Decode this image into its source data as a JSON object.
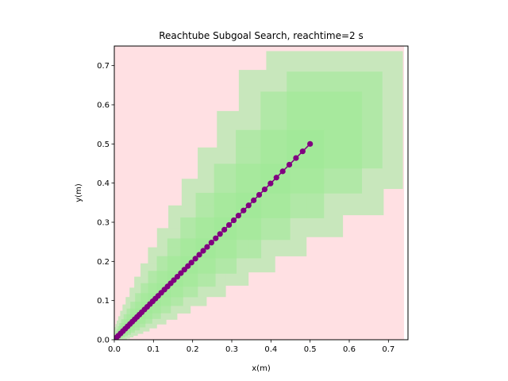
{
  "chart_data": {
    "type": "scatter",
    "title": "Reachtube Subgoal Search, reachtime=2 s",
    "xlabel": "x(m)",
    "ylabel": "y(m)",
    "xlim": [
      0,
      0.75
    ],
    "ylim": [
      0,
      0.75
    ],
    "x_ticks": [
      "0.0",
      "0.1",
      "0.2",
      "0.3",
      "0.4",
      "0.5",
      "0.6",
      "0.7"
    ],
    "y_ticks": [
      "0.0",
      "0.1",
      "0.2",
      "0.3",
      "0.4",
      "0.5",
      "0.6",
      "0.7"
    ],
    "grid": false,
    "legend": "none",
    "colors": {
      "background_region": "#ffe0e3",
      "reach_set": "#c8e7bc",
      "reach_set_core": "#9eea96",
      "trajectory": "#800080"
    },
    "background_region": {
      "x": [
        0,
        0.74
      ],
      "y": [
        0,
        0.75
      ]
    },
    "reach_boxes": [
      {
        "x0": 0.388,
        "x1": 0.737,
        "y0": 0.385,
        "y1": 0.737
      },
      {
        "x0": 0.318,
        "x1": 0.688,
        "y0": 0.318,
        "y1": 0.689
      },
      {
        "x0": 0.262,
        "x1": 0.584,
        "y0": 0.262,
        "y1": 0.584
      },
      {
        "x0": 0.213,
        "x1": 0.491,
        "y0": 0.213,
        "y1": 0.491
      },
      {
        "x0": 0.172,
        "x1": 0.411,
        "y0": 0.172,
        "y1": 0.411
      },
      {
        "x0": 0.138,
        "x1": 0.343,
        "y0": 0.138,
        "y1": 0.343
      },
      {
        "x0": 0.109,
        "x1": 0.285,
        "y0": 0.109,
        "y1": 0.285
      },
      {
        "x0": 0.086,
        "x1": 0.236,
        "y0": 0.086,
        "y1": 0.236
      },
      {
        "x0": 0.067,
        "x1": 0.195,
        "y0": 0.067,
        "y1": 0.195
      },
      {
        "x0": 0.051,
        "x1": 0.161,
        "y0": 0.051,
        "y1": 0.161
      },
      {
        "x0": 0.039,
        "x1": 0.133,
        "y0": 0.039,
        "y1": 0.133
      },
      {
        "x0": 0.029,
        "x1": 0.109,
        "y0": 0.029,
        "y1": 0.109
      },
      {
        "x0": 0.021,
        "x1": 0.09,
        "y0": 0.021,
        "y1": 0.09
      },
      {
        "x0": 0.015,
        "x1": 0.074,
        "y0": 0.015,
        "y1": 0.074
      },
      {
        "x0": 0.01,
        "x1": 0.06,
        "y0": 0.01,
        "y1": 0.06
      },
      {
        "x0": 0.006,
        "x1": 0.049,
        "y0": 0.006,
        "y1": 0.049
      },
      {
        "x0": 0.003,
        "x1": 0.04,
        "y0": 0.003,
        "y1": 0.04
      },
      {
        "x0": 0.001,
        "x1": 0.032,
        "y0": 0.001,
        "y1": 0.032
      },
      {
        "x0": 0.0,
        "x1": 0.025,
        "y0": 0.0,
        "y1": 0.025
      },
      {
        "x0": 0.0,
        "x1": 0.019,
        "y0": 0.0,
        "y1": 0.019
      },
      {
        "x0": 0.0,
        "x1": 0.014,
        "y0": 0.0,
        "y1": 0.014
      },
      {
        "x0": 0.0,
        "x1": 0.01,
        "y0": 0.0,
        "y1": 0.01
      }
    ],
    "series": [
      {
        "x": [
          0.0,
          0.005,
          0.01,
          0.016,
          0.022,
          0.028,
          0.034,
          0.04,
          0.046,
          0.052,
          0.058,
          0.064,
          0.07,
          0.077,
          0.084,
          0.091,
          0.098,
          0.105,
          0.112,
          0.12,
          0.128,
          0.136,
          0.144,
          0.152,
          0.161,
          0.17,
          0.179,
          0.188,
          0.197,
          0.207,
          0.217,
          0.227,
          0.237,
          0.248,
          0.259,
          0.27,
          0.281,
          0.293,
          0.305,
          0.317,
          0.33,
          0.343,
          0.356,
          0.37,
          0.384,
          0.399,
          0.414,
          0.43,
          0.447,
          0.464,
          0.481,
          0.5
        ],
        "y": [
          0.0,
          0.005,
          0.01,
          0.016,
          0.022,
          0.028,
          0.034,
          0.04,
          0.046,
          0.052,
          0.058,
          0.064,
          0.07,
          0.077,
          0.084,
          0.091,
          0.098,
          0.105,
          0.112,
          0.12,
          0.128,
          0.136,
          0.144,
          0.152,
          0.161,
          0.17,
          0.179,
          0.188,
          0.197,
          0.207,
          0.217,
          0.227,
          0.237,
          0.248,
          0.259,
          0.27,
          0.281,
          0.293,
          0.305,
          0.317,
          0.33,
          0.343,
          0.356,
          0.37,
          0.384,
          0.399,
          0.414,
          0.43,
          0.447,
          0.464,
          0.481,
          0.5
        ]
      }
    ]
  }
}
